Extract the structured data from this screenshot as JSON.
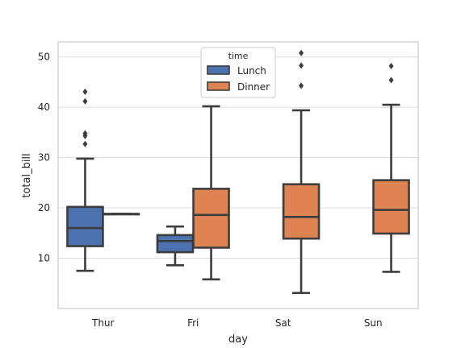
{
  "chart_data": {
    "type": "box",
    "xlabel": "day",
    "ylabel": "total_bill",
    "categories": [
      "Thur",
      "Fri",
      "Sat",
      "Sun"
    ],
    "ylim": [
      0,
      53
    ],
    "yticks": [
      10,
      20,
      30,
      40,
      50
    ],
    "grid": "horizontal",
    "legend": {
      "title": "time",
      "placement": "top-center"
    },
    "series": [
      {
        "name": "Lunch",
        "color": "#4C72B0",
        "boxes": [
          {
            "category": "Thur",
            "whislo": 7.5,
            "q1": 12.4,
            "med": 16.0,
            "q3": 20.2,
            "whishi": 29.8,
            "fliers": [
              32.7,
              34.3,
              34.8,
              41.2,
              43.1
            ]
          },
          {
            "category": "Fri",
            "whislo": 8.6,
            "q1": 11.2,
            "med": 13.4,
            "q3": 14.6,
            "whishi": 16.3,
            "fliers": []
          },
          null,
          null
        ]
      },
      {
        "name": "Dinner",
        "color": "#DD8452",
        "boxes": [
          {
            "category": "Thur",
            "whislo": 18.8,
            "q1": 18.8,
            "med": 18.8,
            "q3": 18.8,
            "whishi": 18.8,
            "fliers": []
          },
          {
            "category": "Fri",
            "whislo": 5.8,
            "q1": 12.1,
            "med": 18.6,
            "q3": 23.8,
            "whishi": 40.2,
            "fliers": []
          },
          {
            "category": "Sat",
            "whislo": 3.1,
            "q1": 13.9,
            "med": 18.2,
            "q3": 24.7,
            "whishi": 39.4,
            "fliers": [
              44.3,
              48.3,
              50.8
            ]
          },
          {
            "category": "Sun",
            "whislo": 7.3,
            "q1": 14.9,
            "med": 19.6,
            "q3": 25.5,
            "whishi": 40.5,
            "fliers": [
              45.4,
              48.2
            ]
          }
        ]
      }
    ]
  },
  "colors": {
    "grid": "#dddddd",
    "frame": "#cccccc",
    "line": "#3d3d3d",
    "text": "#262626"
  }
}
